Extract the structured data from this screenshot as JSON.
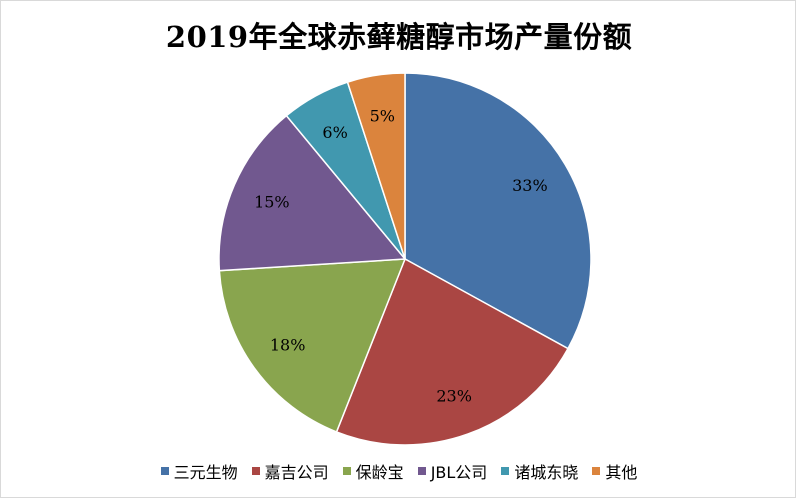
{
  "chart_data": {
    "type": "pie",
    "title": "2019年全球赤藓糖醇市场产量份额",
    "categories": [
      "三元生物",
      "嘉吉公司",
      "保龄宝",
      "JBL公司",
      "诸城东晓",
      "其他"
    ],
    "values": [
      33,
      23,
      18,
      15,
      6,
      5
    ],
    "labels": [
      "33%",
      "23%",
      "18%",
      "15%",
      "6%",
      "5%"
    ],
    "colors": [
      "#4572a7",
      "#aa4643",
      "#89a54e",
      "#71588f",
      "#4198af",
      "#db843d"
    ],
    "legend_position": "bottom"
  }
}
